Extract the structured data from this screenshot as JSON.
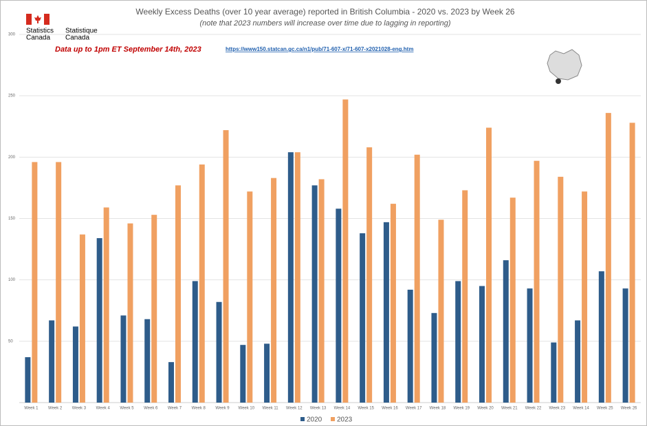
{
  "chart_data": {
    "type": "bar",
    "title": "Weekly Excess Deaths (over 10 year average) reported in British Columbia - 2020 vs. 2023 by Week 26",
    "subtitle": "(note that 2023 numbers will increase over time due to lagging in reporting)",
    "annotation": "Data up to 1pm ET September 14th, 2023",
    "source_url": "https://www150.statcan.gc.ca/n1/pub/71-607-x/71-607-x2021028-eng.htm",
    "logo": {
      "en": [
        "Statistics",
        "Canada"
      ],
      "fr": [
        "Statistique",
        "Canada"
      ]
    },
    "categories": [
      "Week 1",
      "Week 2",
      "Week 3",
      "Week 4",
      "Week 5",
      "Week 6",
      "Week 7",
      "Week 8",
      "Week 9",
      "Week 10",
      "Week 11",
      "Week 12",
      "Week 13",
      "Week 14",
      "Week 15",
      "Week 16",
      "Week 17",
      "Week 18",
      "Week 19",
      "Week 20",
      "Week 21",
      "Week 22",
      "Week 23",
      "Week 14",
      "Week 25",
      "Week 26"
    ],
    "series": [
      {
        "name": "2020",
        "color": "#2e5c8a",
        "values": [
          37,
          67,
          62,
          134,
          71,
          68,
          33,
          99,
          82,
          47,
          48,
          204,
          177,
          158,
          138,
          147,
          92,
          73,
          99,
          95,
          116,
          93,
          49,
          67,
          107,
          93
        ]
      },
      {
        "name": "2023",
        "color": "#f0a061",
        "values": [
          196,
          196,
          137,
          159,
          146,
          153,
          177,
          194,
          222,
          172,
          183,
          204,
          182,
          247,
          208,
          162,
          202,
          149,
          173,
          224,
          167,
          197,
          184,
          172,
          236,
          228
        ]
      }
    ],
    "ylim": [
      0,
      300
    ],
    "yticks": [
      50,
      100,
      150,
      200,
      250,
      300
    ],
    "grid": true,
    "legend": "bottom"
  }
}
